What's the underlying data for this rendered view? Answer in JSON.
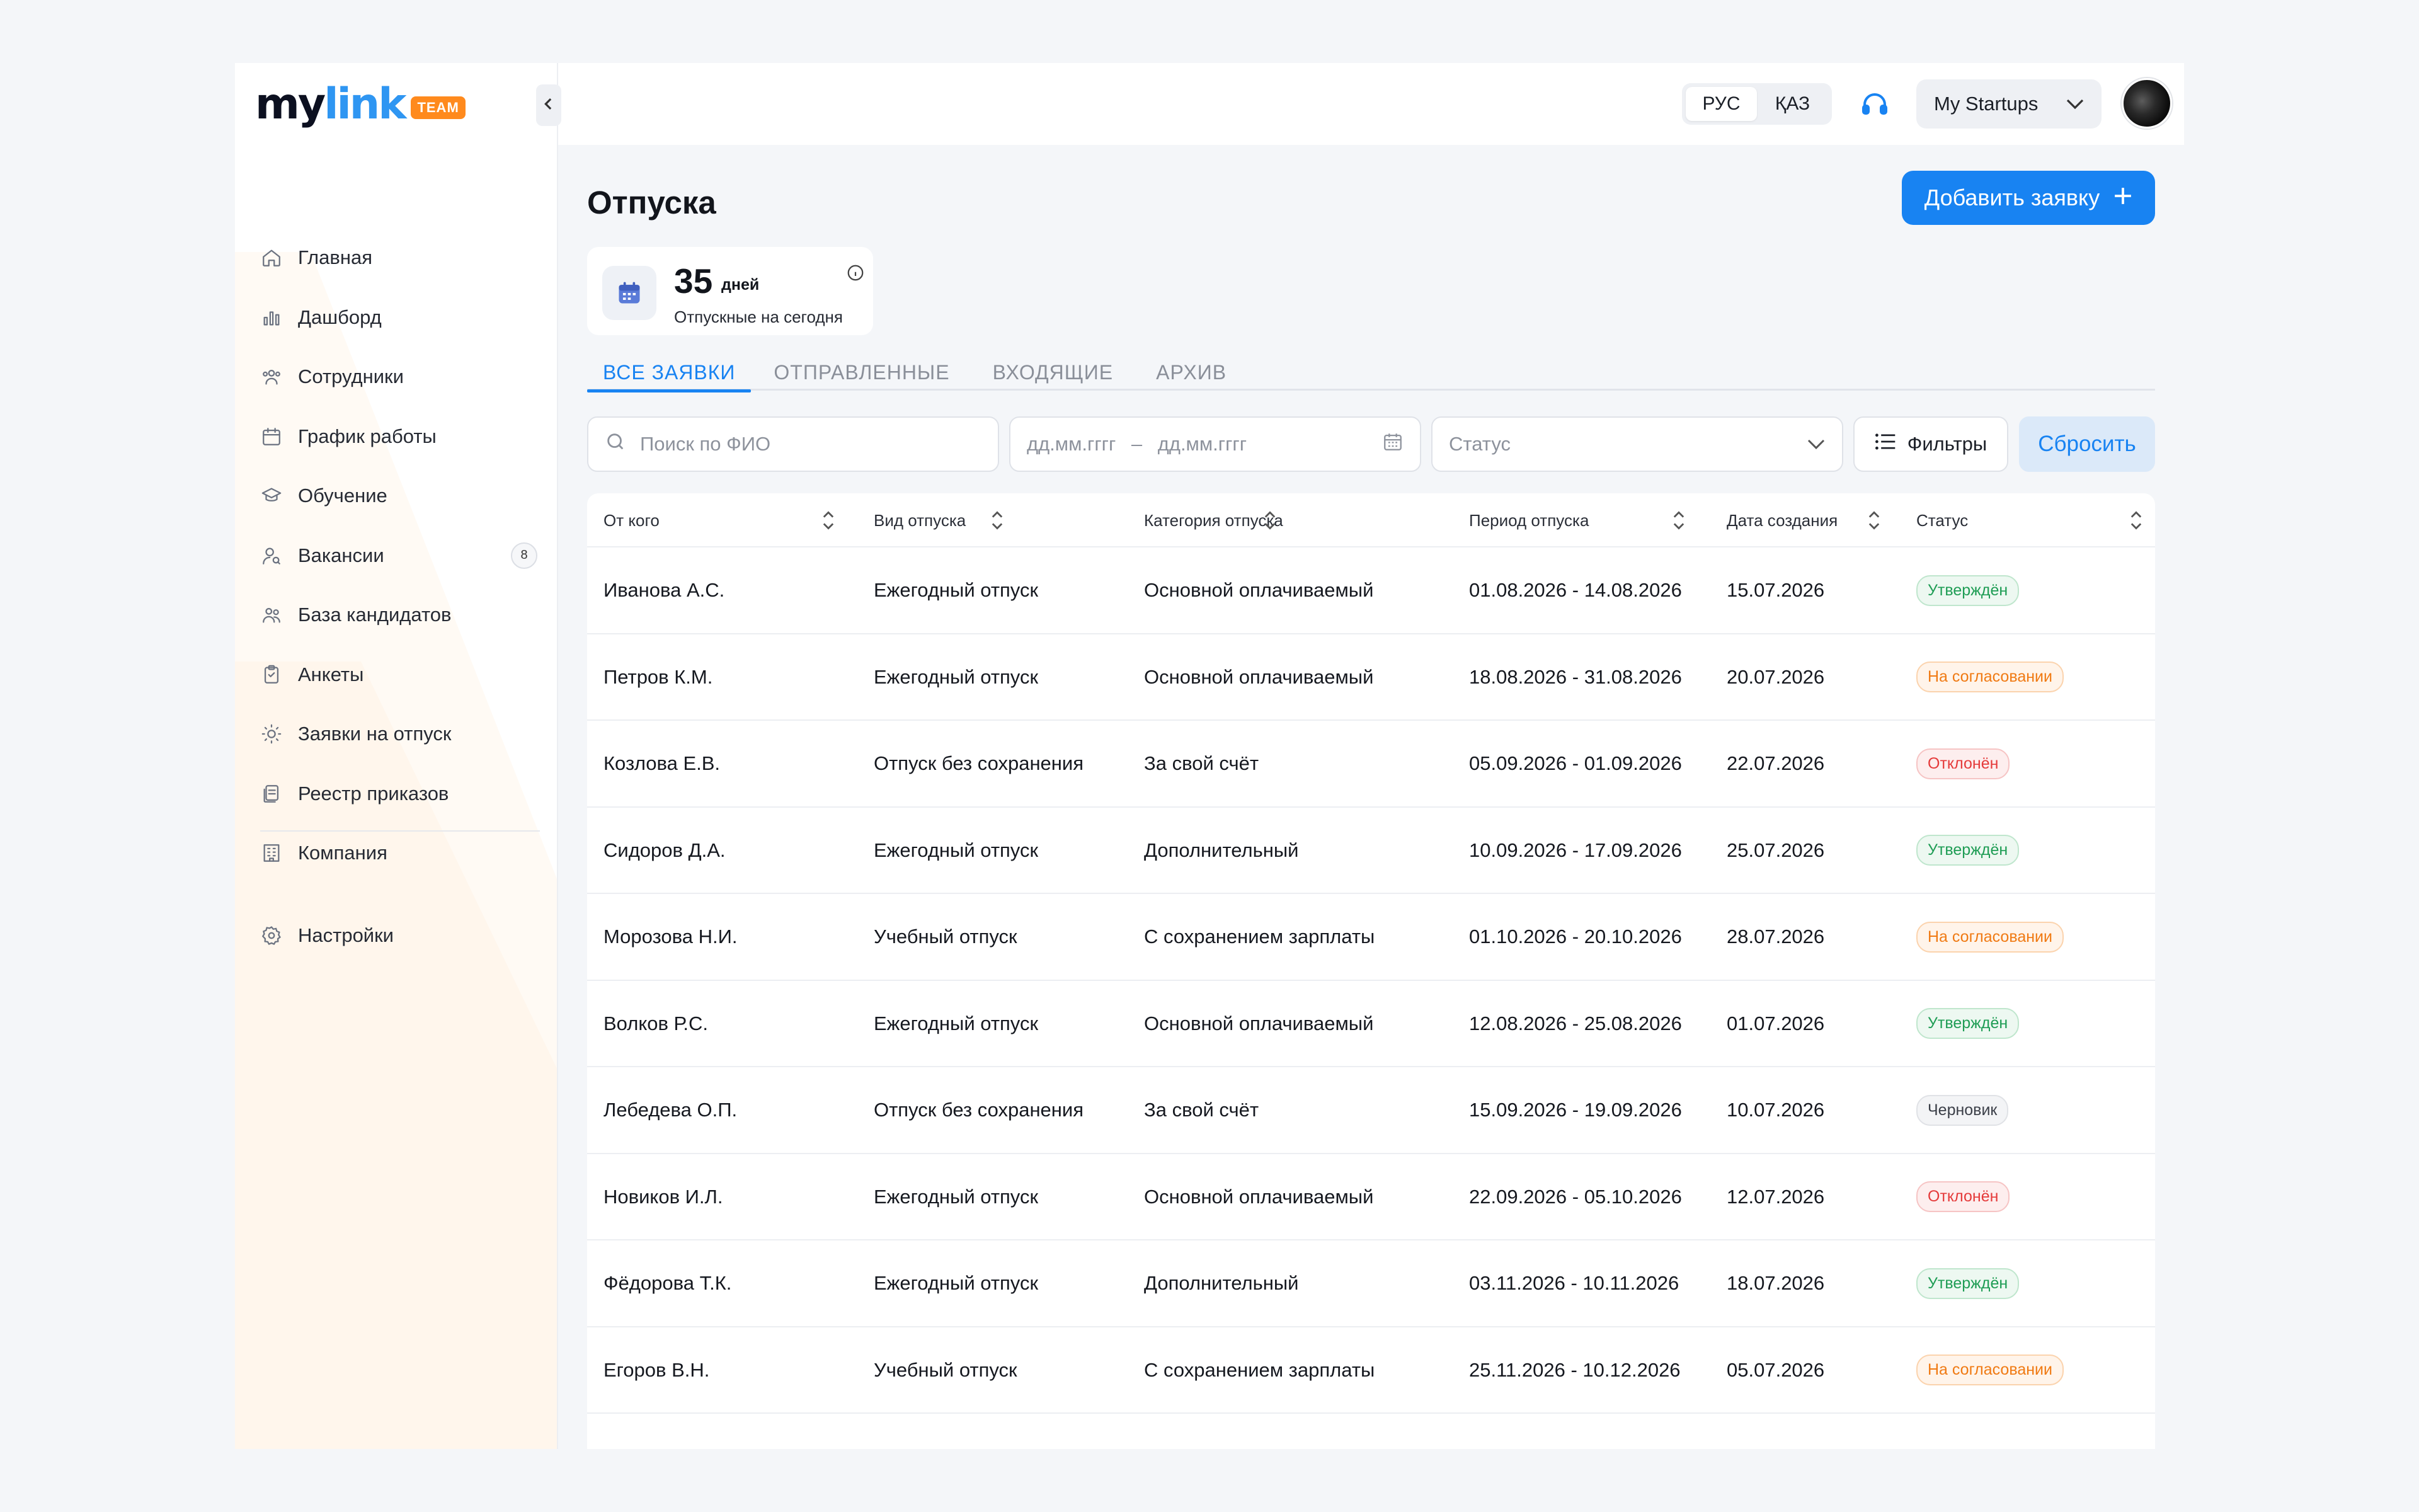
{
  "brand": {
    "logo_my": "my",
    "logo_link": "link",
    "logo_badge": "TEAM"
  },
  "sidebar": {
    "items": [
      {
        "label": "Главная",
        "icon": "home-icon"
      },
      {
        "label": "Дашборд",
        "icon": "chart-icon"
      },
      {
        "label": "Сотрудники",
        "icon": "users-icon"
      },
      {
        "label": "График работы",
        "icon": "calendar-icon"
      },
      {
        "label": "Обучение",
        "icon": "graduation-icon"
      },
      {
        "label": "Вакансии",
        "icon": "user-search-icon",
        "badge": "8"
      },
      {
        "label": "База кандидатов",
        "icon": "people-icon"
      },
      {
        "label": "Анкеты",
        "icon": "clipboard-icon"
      },
      {
        "label": "Заявки на отпуск",
        "icon": "sun-icon"
      },
      {
        "label": "Реестр приказов",
        "icon": "document-stack-icon"
      },
      {
        "label": "Компания",
        "icon": "building-icon"
      }
    ],
    "settings_label": "Настройки"
  },
  "topbar": {
    "lang_options": [
      "РУС",
      "ҚАЗ"
    ],
    "lang_active": "РУС",
    "startup_label": "My Startups"
  },
  "page": {
    "title": "Отпуска",
    "add_button": "Добавить заявку",
    "stat": {
      "value": "35",
      "unit": "дней",
      "label": "Отпускные на сегодня"
    }
  },
  "tabs": [
    "ВСЕ ЗАЯВКИ",
    "ОТПРАВЛЕННЫЕ",
    "ВХОДЯЩИЕ",
    "АРХИВ"
  ],
  "filters": {
    "search_placeholder": "Поиск по ФИО",
    "date_from": "дд.мм.гггг",
    "date_sep": "–",
    "date_to": "дд.мм.гггг",
    "status_placeholder": "Статус",
    "filters_label": "Фильтры",
    "reset_label": "Сбросить"
  },
  "table": {
    "columns": [
      "От кого",
      "Вид отпуска",
      "Категория отпуска",
      "Период отпуска",
      "Дата создания",
      "Статус"
    ],
    "rows": [
      {
        "from": "Иванова А.С.",
        "type": "Ежегодный отпуск",
        "category": "Основной оплачиваемый",
        "period": "01.08.2026 - 14.08.2026",
        "created": "15.07.2026",
        "status": "Утверждён",
        "status_kind": "ok"
      },
      {
        "from": "Петров К.М.",
        "type": "Ежегодный отпуск",
        "category": "Основной оплачиваемый",
        "period": "18.08.2026 - 31.08.2026",
        "created": "20.07.2026",
        "status": "На согласовании",
        "status_kind": "pending"
      },
      {
        "from": "Козлова Е.В.",
        "type": "Отпуск без сохранения",
        "category": "За свой счёт",
        "period": "05.09.2026 - 01.09.2026",
        "created": "22.07.2026",
        "status": "Отклонён",
        "status_kind": "rejected"
      },
      {
        "from": "Сидоров Д.А.",
        "type": "Ежегодный отпуск",
        "category": "Дополнительный",
        "period": "10.09.2026 - 17.09.2026",
        "created": "25.07.2026",
        "status": "Утверждён",
        "status_kind": "ok"
      },
      {
        "from": "Морозова Н.И.",
        "type": "Учебный отпуск",
        "category": "С сохранением зарплаты",
        "period": "01.10.2026 - 20.10.2026",
        "created": "28.07.2026",
        "status": "На согласовании",
        "status_kind": "pending"
      },
      {
        "from": "Волков Р.С.",
        "type": "Ежегодный отпуск",
        "category": "Основной оплачиваемый",
        "period": "12.08.2026 - 25.08.2026",
        "created": "01.07.2026",
        "status": "Утверждён",
        "status_kind": "ok"
      },
      {
        "from": "Лебедева О.П.",
        "type": "Отпуск без сохранения",
        "category": "За свой счёт",
        "period": "15.09.2026 - 19.09.2026",
        "created": "10.07.2026",
        "status": "Черновик",
        "status_kind": "draft"
      },
      {
        "from": "Новиков И.Л.",
        "type": "Ежегодный отпуск",
        "category": "Основной оплачиваемый",
        "period": "22.09.2026 - 05.10.2026",
        "created": "12.07.2026",
        "status": "Отклонён",
        "status_kind": "rejected"
      },
      {
        "from": "Фёдорова Т.К.",
        "type": "Ежегодный отпуск",
        "category": "Дополнительный",
        "period": "03.11.2026 - 10.11.2026",
        "created": "18.07.2026",
        "status": "Утверждён",
        "status_kind": "ok"
      },
      {
        "from": "Егоров В.Н.",
        "type": "Учебный отпуск",
        "category": "С сохранением зарплаты",
        "period": "25.11.2026 - 10.12.2026",
        "created": "05.07.2026",
        "status": "На согласовании",
        "status_kind": "pending"
      }
    ]
  },
  "colors": {
    "accent": "#1883f2",
    "brand_orange": "#ff8a1d",
    "ok": "#1f9d55",
    "pending": "#f07a13",
    "rejected": "#e53b3b"
  }
}
